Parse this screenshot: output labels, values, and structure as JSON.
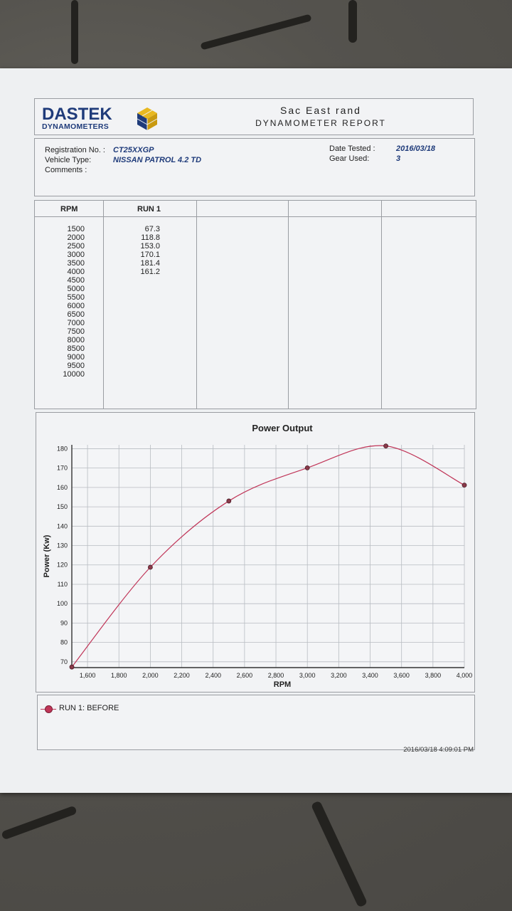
{
  "header": {
    "logo_main": "DASTEK",
    "logo_sub": "DYNAMOMETERS",
    "site": "Sac East rand",
    "report_title": "DYNAMOMETER REPORT"
  },
  "info": {
    "registration_label": "Registration No. :",
    "registration_value": "CT25XXGP",
    "vehicle_label": "Vehicle Type:",
    "vehicle_value": "NISSAN PATROL 4.2 TD",
    "comments_label": "Comments :",
    "date_label": "Date Tested :",
    "date_value": "2016/03/18",
    "gear_label": "Gear Used:",
    "gear_value": "3"
  },
  "table": {
    "headers": [
      "RPM",
      "RUN 1"
    ],
    "rpm": [
      "1500",
      "2000",
      "2500",
      "3000",
      "3500",
      "4000",
      "4500",
      "5000",
      "5500",
      "6000",
      "6500",
      "7000",
      "7500",
      "8000",
      "8500",
      "9000",
      "9500",
      "10000"
    ],
    "run1": [
      "67.3",
      "118.8",
      "153.0",
      "170.1",
      "181.4",
      "161.2"
    ]
  },
  "chart_data": {
    "type": "line",
    "title": "Power Output",
    "xlabel": "RPM",
    "ylabel": "Power (Kw)",
    "xlim": [
      1500,
      4000
    ],
    "ylim": [
      67,
      182
    ],
    "x_ticks": [
      "1,600",
      "1,800",
      "2,000",
      "2,200",
      "2,400",
      "2,600",
      "2,800",
      "3,000",
      "3,200",
      "3,400",
      "3,600",
      "3,800",
      "4,000"
    ],
    "y_ticks": [
      "70",
      "80",
      "90",
      "100",
      "110",
      "120",
      "130",
      "140",
      "150",
      "160",
      "170",
      "180"
    ],
    "grid": true,
    "series": [
      {
        "name": "RUN 1: BEFORE",
        "x": [
          1500,
          2000,
          2500,
          3000,
          3500,
          4000
        ],
        "y": [
          67.3,
          118.8,
          153.0,
          170.1,
          181.4,
          161.2
        ]
      }
    ],
    "color": "#c03558"
  },
  "legend": {
    "label": "RUN 1: BEFORE"
  },
  "footer": {
    "timestamp": "2016/03/18 4:09:01 PM"
  }
}
